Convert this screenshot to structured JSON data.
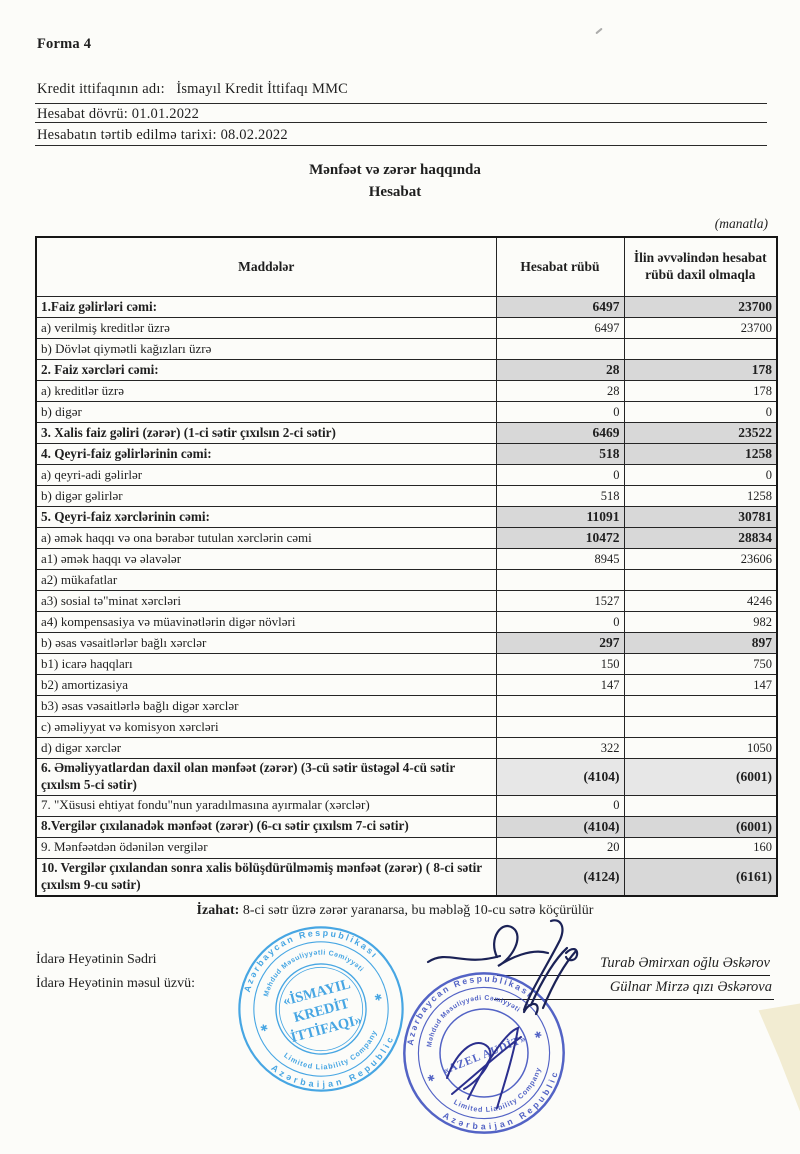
{
  "page": {
    "form_label": "Forma 4",
    "credit_union_label": "Kredit ittifaqının adı:",
    "credit_union_name": "İsmayıl Kredit İttifaqı MMC",
    "report_period": "Hesabat dövrü: 01.01.2022",
    "prepared_date": "Hesabatın tərtib edilmə tarixi: 08.02.2022",
    "title_line1": "Mənfəət və zərər haqqında",
    "title_line2": "Hesabat",
    "currency_note": "(manatla)"
  },
  "table": {
    "headers": [
      "Maddələr",
      "Hesabat rübü",
      "İlin əvvəlindən hesabat rübü daxil olmaqla"
    ],
    "rows": [
      {
        "label": "1.Faiz gəlirləri cəmi:",
        "q": "6497",
        "ytd": "23700",
        "style": "total"
      },
      {
        "label": "a) verilmiş kreditlər üzrə",
        "q": "6497",
        "ytd": "23700",
        "style": "plain"
      },
      {
        "label": "b)  Dövlət qiymətli kağızları üzrə",
        "q": "",
        "ytd": "",
        "style": "plain"
      },
      {
        "label": "2.  Faiz xərcləri cəmi:",
        "q": "28",
        "ytd": "178",
        "style": "total"
      },
      {
        "label": "a) kreditlər üzrə",
        "q": "28",
        "ytd": "178",
        "style": "plain"
      },
      {
        "label": "b) digər",
        "q": "0",
        "ytd": "0",
        "style": "plain"
      },
      {
        "label": "3.  Xalis faiz gəliri (zərər) (1-ci sətir çıxılsın 2-ci sətir)",
        "q": "6469",
        "ytd": "23522",
        "style": "total"
      },
      {
        "label": "4. Qeyri-faiz gəlirlərinin cəmi:",
        "q": "518",
        "ytd": "1258",
        "style": "total"
      },
      {
        "label": "a) qeyri-adi gəlirlər",
        "q": "0",
        "ytd": "0",
        "style": "plain"
      },
      {
        "label": "b) digər gəlirlər",
        "q": "518",
        "ytd": "1258",
        "style": "plain"
      },
      {
        "label": "5. Qeyri-faiz xərclərinin cəmi:",
        "q": "11091",
        "ytd": "30781",
        "style": "total"
      },
      {
        "label": "a) əmək haqqı və ona bərabər tutulan xərclərin cəmi",
        "q": "10472",
        "ytd": "28834",
        "style": "subtotal"
      },
      {
        "label": "a1) əmək haqqı  və əlavələr",
        "q": "8945",
        "ytd": "23606",
        "style": "plain"
      },
      {
        "label": "a2)  mükafatlar",
        "q": "",
        "ytd": "",
        "style": "plain"
      },
      {
        "label": "a3) sosial tə\"minat xərcləri",
        "q": "1527",
        "ytd": "4246",
        "style": "plain"
      },
      {
        "label": "a4) kompensasiya və müavinətlərin digər növləri",
        "q": "0",
        "ytd": "982",
        "style": "plain"
      },
      {
        "label": "b) əsas vəsaitlərlər bağlı xərclər",
        "q": "297",
        "ytd": "897",
        "style": "subtotal"
      },
      {
        "label": "b1) icarə haqqları",
        "q": "150",
        "ytd": "750",
        "style": "plain"
      },
      {
        "label": "b2) amortizasiya",
        "q": "147",
        "ytd": "147",
        "style": "plain"
      },
      {
        "label": "b3) əsas vəsaitlərlə bağlı digər xərclər",
        "q": "",
        "ytd": "",
        "style": "plain"
      },
      {
        "label": "c) əməliyyat və komisyon xərcləri",
        "q": "",
        "ytd": "",
        "style": "plain"
      },
      {
        "label": "d) digər xərclər",
        "q": "322",
        "ytd": "1050",
        "style": "plain"
      },
      {
        "label": "6. Əməliyyatlardan daxil olan  mənfəət (zərər) (3-cü sətir üstəgəl 4-cü sətir çıxılsm 5-ci sətir)",
        "q": "(4104)",
        "ytd": "(6001)",
        "style": "result"
      },
      {
        "label": "7.  \"Xüsusi ehtiyat fondu\"nun yaradılmasına ayırmalar (xərclər)",
        "q": "0",
        "ytd": "",
        "style": "plain"
      },
      {
        "label": "8.Vergilər çıxılanadək mənfəət (zərər) (6-cı sətir çıxılsm 7-ci sətir)",
        "q": "(4104)",
        "ytd": "(6001)",
        "style": "total"
      },
      {
        "label": "9.  Mənfəətdən ödənilən vergilər",
        "q": "20",
        "ytd": "160",
        "style": "plain"
      },
      {
        "label": "10. Vergilər çıxılandan sonra xalis bölüşdürülməmiş mənfəət (zərər) ( 8-ci sətir çıxılsm 9-cu sətir)",
        "q": "(4124)",
        "ytd": "(6161)",
        "style": "total"
      }
    ]
  },
  "footer": {
    "note_label": "İzahat:",
    "note_text": " 8-ci sətr üzrə zərər yaranarsa, bu məbləğ 10-cu sətrə köçürülür",
    "sign_role1": "İdarə Heyətinin Sədri",
    "sign_role2": "İdarə Heyətinin məsul üzvü:",
    "sign_name1": "Turab Əmirxan oğlu Əskərov",
    "sign_name2": "Gülnar  Mirzə qızı Əskərova"
  },
  "stamps": {
    "left": {
      "outer_top": "Azərbaycan Respublikası",
      "outer_bottom": "Azərbaijan Republic",
      "middle_top": "Məhdud Məsuliyyətli Cəmiyyəti",
      "middle_bottom": "Limited Liability Company",
      "star": "✱",
      "center_line1": "«İSMAYIL",
      "center_line2": "KREDİT",
      "center_line3": "İTTİFAQI»"
    },
    "right": {
      "outer_top": "Azərbaycan Respublikası",
      "outer_bottom": "Azərbaijan Republic",
      "middle_top": "Məhdud Məsuliyyədi Cəmiyyəti",
      "middle_bottom": "Limited Liability Company",
      "star": "✱",
      "center": "«AZEL AUDİT»"
    }
  },
  "colors": {
    "paper": "#fcfcf9",
    "ink": "#1f1f1f",
    "shaded_row": "#d8d8d8",
    "result_row": "#e7e7e7",
    "stamp_left_blue": "#2f9be0",
    "stamp_right_indigo": "#3c4fbe",
    "signature_ink": "#1b2256",
    "artifact_cream": "#f2ecd2"
  }
}
